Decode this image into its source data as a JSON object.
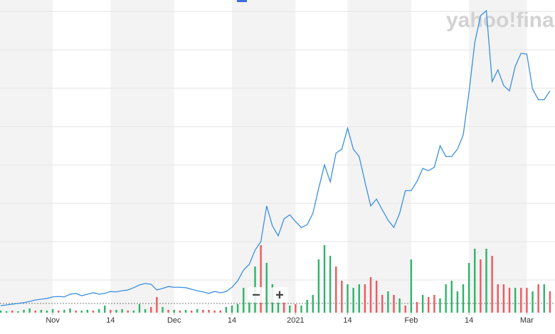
{
  "chart_data": {
    "type": "line",
    "watermark": "yahoo!finance",
    "controls": {
      "zoom_out": "−",
      "zoom_in": "+"
    },
    "x": [
      0,
      1,
      2,
      3,
      4,
      5,
      6,
      7,
      8,
      9,
      10,
      11,
      12,
      13,
      14,
      15,
      16,
      17,
      18,
      19,
      20,
      21,
      22,
      23,
      24,
      25,
      26,
      27,
      28,
      29,
      30,
      31,
      32,
      33,
      34,
      35,
      36,
      37,
      38,
      39,
      40,
      41,
      42,
      43,
      44,
      45,
      46,
      47,
      48,
      49,
      50,
      51,
      52,
      53,
      54,
      55,
      56,
      57,
      58,
      59,
      60,
      61,
      62,
      63,
      64,
      65,
      66,
      67,
      68,
      69,
      70,
      71,
      72,
      73,
      74,
      75,
      76,
      77,
      78,
      79,
      80,
      81,
      82,
      83,
      84,
      85,
      86,
      87,
      88,
      89,
      90,
      91,
      92,
      93,
      94,
      95
    ],
    "xlim": [
      0,
      96
    ],
    "xticks": [
      {
        "value": 9,
        "label": "Nov"
      },
      {
        "value": 19,
        "label": "14"
      },
      {
        "value": 30,
        "label": "Dec"
      },
      {
        "value": 40,
        "label": "14"
      },
      {
        "value": 51,
        "label": "2021"
      },
      {
        "value": 60,
        "label": "14"
      },
      {
        "value": 71,
        "label": "Feb"
      },
      {
        "value": 81,
        "label": "14"
      },
      {
        "value": 91,
        "label": "Mar"
      }
    ],
    "ylim": [
      0,
      8.3
    ],
    "yticks": [
      1,
      2,
      3,
      4,
      5,
      6,
      7,
      8
    ],
    "y2lim": [
      0,
      110
    ],
    "grid": true,
    "series": [
      {
        "color": "#3b8fe3",
        "values": [
          0.33,
          0.35,
          0.37,
          0.39,
          0.41,
          0.44,
          0.48,
          0.5,
          0.52,
          0.56,
          0.57,
          0.56,
          0.63,
          0.65,
          0.59,
          0.63,
          0.67,
          0.63,
          0.65,
          0.7,
          0.69,
          0.72,
          0.74,
          0.8,
          0.87,
          0.91,
          0.89,
          0.74,
          0.78,
          0.83,
          0.81,
          0.81,
          0.8,
          0.76,
          0.72,
          0.69,
          0.65,
          0.7,
          0.67,
          0.7,
          0.81,
          0.98,
          1.26,
          1.41,
          1.78,
          2.0,
          2.93,
          2.41,
          2.15,
          2.59,
          2.7,
          2.52,
          2.37,
          2.44,
          2.74,
          3.39,
          4.0,
          3.56,
          4.31,
          4.41,
          4.96,
          4.41,
          4.22,
          3.56,
          2.93,
          3.11,
          2.83,
          2.56,
          2.37,
          2.74,
          3.33,
          3.33,
          3.57,
          3.91,
          3.85,
          3.94,
          4.5,
          4.22,
          4.22,
          4.41,
          4.78,
          5.89,
          7.19,
          7.89,
          8.02,
          6.17,
          6.48,
          6.07,
          5.93,
          6.57,
          6.91,
          6.89,
          5.98,
          5.7,
          5.7,
          5.93
        ]
      },
      {
        "axis": "y2",
        "values": [
          3,
          2,
          3,
          2,
          4,
          6,
          3,
          4,
          3,
          5,
          3,
          4,
          6,
          3,
          3,
          4,
          3,
          5,
          10,
          4,
          4,
          5,
          3,
          3,
          12,
          5,
          8,
          22,
          8,
          4,
          4,
          3,
          4,
          3,
          5,
          4,
          4,
          3,
          3,
          8,
          10,
          12,
          35,
          18,
          65,
          95,
          70,
          40,
          25,
          15,
          10,
          12,
          10,
          18,
          25,
          75,
          95,
          80,
          65,
          45,
          40,
          35,
          40,
          40,
          50,
          45,
          25,
          30,
          25,
          20,
          10,
          75,
          15,
          25,
          22,
          25,
          20,
          40,
          45,
          30,
          40,
          70,
          90,
          75,
          90,
          80,
          40,
          40,
          35,
          35,
          35,
          35,
          30,
          40,
          40,
          30
        ],
        "colors": [
          "#2fb36b",
          "#2fb36b",
          "#ec5a5f",
          "#2fb36b",
          "#2fb36b",
          "#2fb36b",
          "#ec5a5f",
          "#2fb36b",
          "#2fb36b",
          "#2fb36b",
          "#ec5a5f",
          "#2fb36b",
          "#2fb36b",
          "#ec5a5f",
          "#2fb36b",
          "#2fb36b",
          "#ec5a5f",
          "#2fb36b",
          "#2fb36b",
          "#ec5a5f",
          "#2fb36b",
          "#2fb36b",
          "#ec5a5f",
          "#2fb36b",
          "#2fb36b",
          "#2fb36b",
          "#ec5a5f",
          "#ec5a5f",
          "#2fb36b",
          "#ec5a5f",
          "#2fb36b",
          "#ec5a5f",
          "#2fb36b",
          "#ec5a5f",
          "#2fb36b",
          "#ec5a5f",
          "#ec5a5f",
          "#ec5a5f",
          "#ec5a5f",
          "#2fb36b",
          "#2fb36b",
          "#2fb36b",
          "#2fb36b",
          "#2fb36b",
          "#2fb36b",
          "#ec5a5f",
          "#2fb36b",
          "#2fb36b",
          "#2fb36b",
          "#ec5a5f",
          "#2fb36b",
          "#ec5a5f",
          "#2fb36b",
          "#2fb36b",
          "#2fb36b",
          "#2fb36b",
          "#2fb36b",
          "#2fb36b",
          "#ec5a5f",
          "#ec5a5f",
          "#2fb36b",
          "#2fb36b",
          "#2fb36b",
          "#ec5a5f",
          "#ec5a5f",
          "#ec5a5f",
          "#ec5a5f",
          "#2fb36b",
          "#ec5a5f",
          "#2fb36b",
          "#ec5a5f",
          "#2fb36b",
          "#ec5a5f",
          "#2fb36b",
          "#ec5a5f",
          "#ec5a5f",
          "#2fb36b",
          "#2fb36b",
          "#2fb36b",
          "#2fb36b",
          "#2fb36b",
          "#2fb36b",
          "#2fb36b",
          "#ec5a5f",
          "#2fb36b",
          "#ec5a5f",
          "#ec5a5f",
          "#ec5a5f",
          "#ec5a5f",
          "#2fb36b",
          "#ec5a5f",
          "#ec5a5f",
          "#2fb36b",
          "#ec5a5f",
          "#2fb36b",
          "#ec5a5f"
        ]
      }
    ]
  }
}
